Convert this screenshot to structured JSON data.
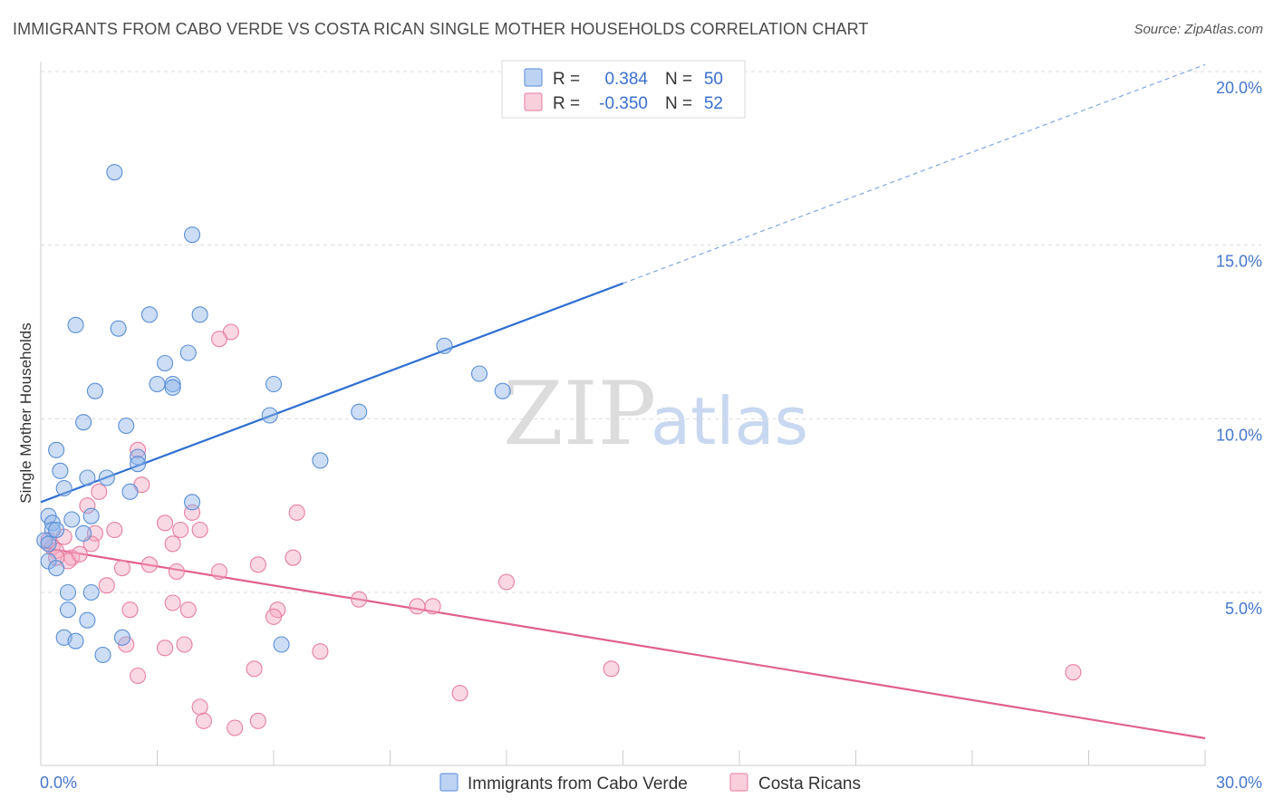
{
  "header": {
    "title": "IMMIGRANTS FROM CABO VERDE VS COSTA RICAN SINGLE MOTHER HOUSEHOLDS CORRELATION CHART",
    "source": "Source: ZipAtlas.com"
  },
  "watermark": {
    "zip": "ZIP",
    "atlas": "atlas"
  },
  "chart_data": {
    "type": "scatter",
    "title": "IMMIGRANTS FROM CABO VERDE VS COSTA RICAN SINGLE MOTHER HOUSEHOLDS CORRELATION CHART",
    "xlabel": "",
    "ylabel": "Single Mother Households",
    "xlim": [
      0,
      30
    ],
    "ylim": [
      0,
      20.5
    ],
    "x_tick_labels": [
      "0.0%",
      "30.0%"
    ],
    "y_ticks": [
      5,
      10,
      15,
      20
    ],
    "y_tick_labels": [
      "5.0%",
      "10.0%",
      "15.0%",
      "20.0%"
    ],
    "grid": true,
    "legend_top": [
      {
        "r_label": "R =",
        "r_value": "0.384",
        "n_label": "N =",
        "n_value": "50",
        "color": "#8fb4e8"
      },
      {
        "r_label": "R =",
        "r_value": "-0.350",
        "n_label": "N =",
        "n_value": "52",
        "color": "#f4a8c0"
      }
    ],
    "series": [
      {
        "name": "Immigrants from Cabo Verde",
        "color": "#8fb4e8",
        "stroke": "#5b8fd6",
        "trend": {
          "x0": 0,
          "y0": 7.6,
          "x1": 15,
          "y1": 13.9,
          "x_ext": 30,
          "y_ext": 20.2,
          "color": "#2f6fd0"
        },
        "points": [
          [
            1.9,
            17.1
          ],
          [
            3.9,
            15.3
          ],
          [
            0.9,
            12.7
          ],
          [
            2.0,
            12.6
          ],
          [
            2.8,
            13.0
          ],
          [
            4.1,
            13.0
          ],
          [
            3.8,
            11.9
          ],
          [
            3.2,
            11.6
          ],
          [
            3.0,
            11.0
          ],
          [
            3.4,
            11.0
          ],
          [
            3.4,
            10.9
          ],
          [
            6.0,
            11.0
          ],
          [
            10.4,
            12.1
          ],
          [
            11.3,
            11.3
          ],
          [
            11.9,
            10.8
          ],
          [
            1.4,
            10.8
          ],
          [
            1.1,
            9.9
          ],
          [
            2.2,
            9.8
          ],
          [
            5.9,
            10.1
          ],
          [
            8.2,
            10.2
          ],
          [
            0.4,
            9.1
          ],
          [
            0.5,
            8.5
          ],
          [
            1.2,
            8.3
          ],
          [
            1.7,
            8.3
          ],
          [
            2.5,
            8.9
          ],
          [
            2.5,
            8.7
          ],
          [
            0.6,
            8.0
          ],
          [
            2.3,
            7.9
          ],
          [
            7.2,
            8.8
          ],
          [
            3.9,
            7.6
          ],
          [
            0.2,
            7.2
          ],
          [
            0.3,
            7.0
          ],
          [
            0.8,
            7.1
          ],
          [
            1.3,
            7.2
          ],
          [
            0.3,
            6.8
          ],
          [
            0.4,
            6.8
          ],
          [
            1.1,
            6.7
          ],
          [
            0.1,
            6.5
          ],
          [
            0.2,
            6.4
          ],
          [
            0.2,
            5.9
          ],
          [
            0.4,
            5.7
          ],
          [
            0.7,
            5.0
          ],
          [
            1.3,
            5.0
          ],
          [
            0.7,
            4.5
          ],
          [
            1.2,
            4.2
          ],
          [
            0.6,
            3.7
          ],
          [
            0.9,
            3.6
          ],
          [
            2.1,
            3.7
          ],
          [
            1.6,
            3.2
          ],
          [
            6.2,
            3.5
          ]
        ]
      },
      {
        "name": "Costa Ricans",
        "color": "#f4a8c0",
        "stroke": "#e77fa0",
        "trend": {
          "x0": 0,
          "y0": 6.3,
          "x1": 30,
          "y1": 0.8,
          "color": "#e0608e"
        },
        "points": [
          [
            4.9,
            12.5
          ],
          [
            4.6,
            12.3
          ],
          [
            2.5,
            9.1
          ],
          [
            2.6,
            8.1
          ],
          [
            1.5,
            7.9
          ],
          [
            1.2,
            7.5
          ],
          [
            6.6,
            7.3
          ],
          [
            3.2,
            7.0
          ],
          [
            3.9,
            7.3
          ],
          [
            1.9,
            6.8
          ],
          [
            1.4,
            6.7
          ],
          [
            4.1,
            6.8
          ],
          [
            3.6,
            6.8
          ],
          [
            0.6,
            6.6
          ],
          [
            0.3,
            6.3
          ],
          [
            0.4,
            6.2
          ],
          [
            0.8,
            6.0
          ],
          [
            0.7,
            5.9
          ],
          [
            1.0,
            6.1
          ],
          [
            1.3,
            6.4
          ],
          [
            3.4,
            6.4
          ],
          [
            6.5,
            6.0
          ],
          [
            2.1,
            5.7
          ],
          [
            2.8,
            5.8
          ],
          [
            3.5,
            5.6
          ],
          [
            4.6,
            5.6
          ],
          [
            5.6,
            5.8
          ],
          [
            1.7,
            5.2
          ],
          [
            8.2,
            4.8
          ],
          [
            12.0,
            5.3
          ],
          [
            10.1,
            4.6
          ],
          [
            9.7,
            4.6
          ],
          [
            3.4,
            4.7
          ],
          [
            2.3,
            4.5
          ],
          [
            3.8,
            4.5
          ],
          [
            6.1,
            4.5
          ],
          [
            6.0,
            4.3
          ],
          [
            2.2,
            3.5
          ],
          [
            3.2,
            3.4
          ],
          [
            3.7,
            3.5
          ],
          [
            7.2,
            3.3
          ],
          [
            5.5,
            2.8
          ],
          [
            2.5,
            2.6
          ],
          [
            14.7,
            2.8
          ],
          [
            26.6,
            2.7
          ],
          [
            10.8,
            2.1
          ],
          [
            4.1,
            1.7
          ],
          [
            4.2,
            1.3
          ],
          [
            5.6,
            1.3
          ],
          [
            5.0,
            1.1
          ],
          [
            0.4,
            6.0
          ],
          [
            0.2,
            6.5
          ]
        ]
      }
    ]
  }
}
